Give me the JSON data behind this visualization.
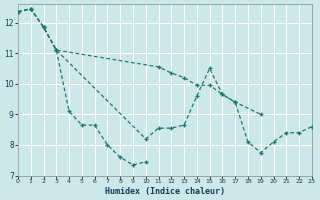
{
  "xlabel": "Humidex (Indice chaleur)",
  "bg_color": "#cce8e8",
  "grid_color": "#ffffff",
  "line_color": "#1a7a6a",
  "xlim": [
    0,
    23
  ],
  "ylim": [
    7,
    12.6
  ],
  "yticks": [
    7,
    8,
    9,
    10,
    11,
    12
  ],
  "xticks": [
    0,
    1,
    2,
    3,
    4,
    5,
    6,
    7,
    8,
    9,
    10,
    11,
    12,
    13,
    14,
    15,
    16,
    17,
    18,
    19,
    20,
    21,
    22,
    23
  ],
  "line1_x": [
    0,
    1,
    2,
    3,
    4,
    5,
    6,
    7,
    8,
    9,
    10
  ],
  "line1_y": [
    12.35,
    12.45,
    11.85,
    11.1,
    9.1,
    8.65,
    8.65,
    8.0,
    7.6,
    7.35,
    7.45
  ],
  "line2_x": [
    0,
    1,
    2,
    3,
    10,
    11,
    12,
    13,
    14,
    15,
    16,
    17,
    18,
    19,
    20,
    21,
    22,
    23
  ],
  "line2_y": [
    12.35,
    12.45,
    11.85,
    11.1,
    8.2,
    8.55,
    8.55,
    8.65,
    9.6,
    10.5,
    9.65,
    9.4,
    8.1,
    7.75,
    8.1,
    8.4,
    8.4,
    8.6
  ],
  "line3_x": [
    0,
    1,
    2,
    3,
    11,
    12,
    13,
    14,
    15,
    16,
    17,
    19
  ],
  "line3_y": [
    12.35,
    12.45,
    11.85,
    11.1,
    10.55,
    10.35,
    10.2,
    9.95,
    9.95,
    9.65,
    9.4,
    9.0
  ]
}
